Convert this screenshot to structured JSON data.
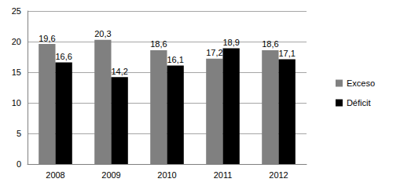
{
  "chart_data": {
    "type": "bar",
    "categories": [
      "2008",
      "2009",
      "2010",
      "2011",
      "2012"
    ],
    "series": [
      {
        "name": "Exceso",
        "color": "#808080",
        "values": [
          19.6,
          20.3,
          18.6,
          17.2,
          18.6
        ],
        "value_labels": [
          "19,6",
          "20,3",
          "18,6",
          "17,2",
          "18,6"
        ]
      },
      {
        "name": "Déficit",
        "color": "#000000",
        "values": [
          16.6,
          14.2,
          16.1,
          18.9,
          17.1
        ],
        "value_labels": [
          "16,6",
          "14,2",
          "16,1",
          "18,9",
          "17,1"
        ]
      }
    ],
    "ylim": [
      0,
      25
    ],
    "yticks": [
      0,
      5,
      10,
      15,
      20,
      25
    ],
    "grid": true,
    "legend": "right",
    "data_labels": true
  }
}
